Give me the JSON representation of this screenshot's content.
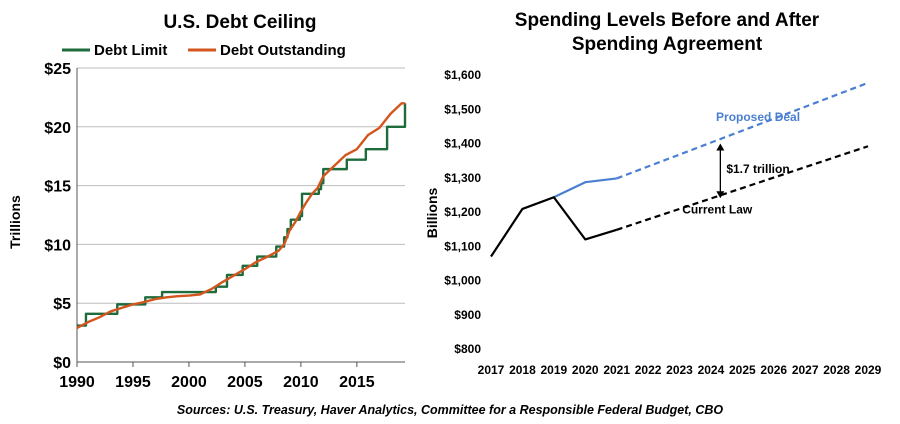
{
  "chart_data": [
    {
      "type": "line",
      "title": "U.S. Debt Ceiling",
      "xlabel": "",
      "ylabel": "Trillions",
      "xlim": [
        1990,
        2019.3
      ],
      "ylim": [
        0,
        25
      ],
      "x_ticks": [
        "1990",
        "1995",
        "2000",
        "2005",
        "2010",
        "2015"
      ],
      "x_tick_values": [
        1990,
        1995,
        2000,
        2005,
        2010,
        2015
      ],
      "y_ticks": [
        "$0",
        "$5",
        "$10",
        "$15",
        "$20",
        "$25"
      ],
      "y_tick_values": [
        0,
        5,
        10,
        15,
        20,
        25
      ],
      "grid": "horizontal",
      "legend": "top",
      "series": [
        {
          "name": "Debt Limit",
          "color": "#1e6b3c",
          "step": true,
          "x": [
            1990.0,
            1990.8,
            1993.6,
            1996.1,
            1997.6,
            2002.4,
            2003.4,
            2004.8,
            2006.1,
            2007.8,
            2008.5,
            2008.8,
            2009.1,
            2009.9,
            2010.1,
            2011.6,
            2011.8,
            2012.0,
            2014.1,
            2015.8,
            2017.7,
            2019.3
          ],
          "y": [
            3.1,
            4.1,
            4.9,
            5.5,
            5.95,
            6.4,
            7.4,
            8.18,
            8.97,
            9.82,
            10.6,
            11.3,
            12.1,
            12.4,
            14.3,
            14.7,
            15.2,
            16.4,
            17.2,
            18.1,
            20.0,
            22.0
          ]
        },
        {
          "name": "Debt Outstanding",
          "color": "#d4561f",
          "x": [
            1990.0,
            1991.0,
            1992.0,
            1993.0,
            1994.0,
            1995.0,
            1996.0,
            1997.0,
            1998.0,
            1999.0,
            2000.0,
            2001.0,
            2002.0,
            2003.0,
            2004.0,
            2005.0,
            2006.0,
            2007.0,
            2008.0,
            2008.5,
            2009.0,
            2009.5,
            2010.0,
            2010.5,
            2011.0,
            2011.5,
            2012.0,
            2013.0,
            2014.0,
            2015.0,
            2016.0,
            2017.0,
            2018.0,
            2019.0,
            2019.3
          ],
          "y": [
            2.9,
            3.4,
            3.8,
            4.3,
            4.6,
            4.9,
            5.1,
            5.35,
            5.5,
            5.6,
            5.65,
            5.75,
            6.2,
            6.8,
            7.35,
            7.9,
            8.5,
            8.95,
            9.45,
            10.0,
            11.2,
            11.9,
            12.8,
            13.6,
            14.3,
            14.8,
            15.8,
            16.7,
            17.6,
            18.1,
            19.3,
            19.9,
            21.1,
            22.0,
            22.0
          ]
        }
      ]
    },
    {
      "type": "line",
      "title": "Spending Levels Before and After Spending Agreement",
      "title_lines": [
        "Spending Levels Before and After",
        "Spending Agreement"
      ],
      "xlabel": "",
      "ylabel": "Billions",
      "xlim": [
        2017,
        2029
      ],
      "ylim": [
        800,
        1600
      ],
      "x_ticks": [
        "2017",
        "2018",
        "2019",
        "2020",
        "2021",
        "2022",
        "2023",
        "2024",
        "2025",
        "2026",
        "2027",
        "2028",
        "2029"
      ],
      "x_tick_values": [
        2017,
        2018,
        2019,
        2020,
        2021,
        2022,
        2023,
        2024,
        2025,
        2026,
        2027,
        2028,
        2029
      ],
      "y_ticks": [
        "$800",
        "$900",
        "$1,000",
        "$1,100",
        "$1,200",
        "$1,300",
        "$1,400",
        "$1,500",
        "$1,600"
      ],
      "y_tick_values": [
        800,
        900,
        1000,
        1100,
        1200,
        1300,
        1400,
        1500,
        1600
      ],
      "grid": "none",
      "legend": "none",
      "series": [
        {
          "label": "Proposed Deal",
          "color": "#4a7fd1",
          "label_x": 2025.5,
          "label_y": 1465,
          "solid": {
            "x": [
              2019,
              2020,
              2021
            ],
            "y": [
              1243,
              1287,
              1298
            ]
          },
          "dashed": {
            "x": [
              2021,
              2029
            ],
            "y": [
              1298,
              1577
            ]
          }
        },
        {
          "label": "Current Law",
          "color": "#000000",
          "label_x": 2024.2,
          "label_y": 1195,
          "solid": {
            "x": [
              2017,
              2018,
              2019,
              2020,
              2021
            ],
            "y": [
              1070,
              1209,
              1243,
              1120,
              1148
            ]
          },
          "dashed": {
            "x": [
              2021,
              2029
            ],
            "y": [
              1148,
              1392
            ]
          }
        }
      ],
      "annotations": [
        {
          "text": "$1.7 trillion",
          "x": 2024.3,
          "y_from": 1240,
          "y_to": 1400
        }
      ]
    }
  ],
  "source_note": "Sources: U.S. Treasury, Haver Analytics, Committee for a Responsible Federal Budget, CBO"
}
